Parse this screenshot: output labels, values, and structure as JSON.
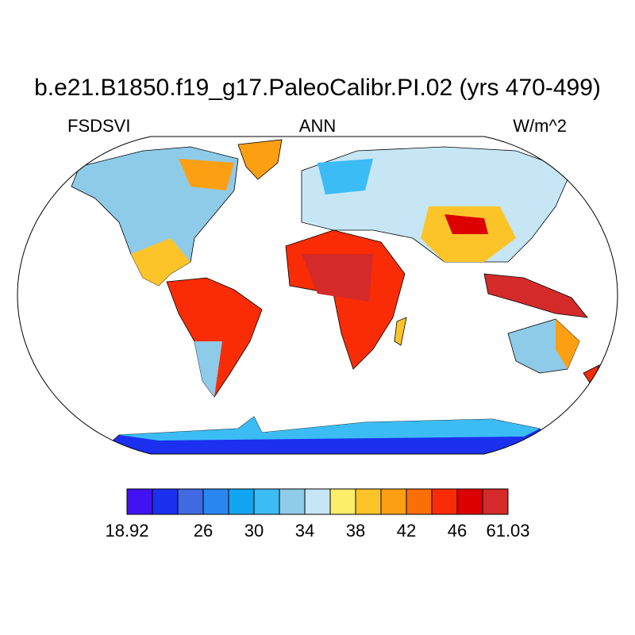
{
  "title": "b.e21.B1850.f19_g17.PaleoCalibr.PI.02 (yrs 470-499)",
  "variable": "FSDSVI",
  "season": "ANN",
  "units": "W/m^2",
  "colorbar": {
    "colors": [
      "#4312f2",
      "#1c30f0",
      "#4169e1",
      "#2a86f0",
      "#12a6f2",
      "#3cbcf5",
      "#8ecbe8",
      "#c6e6f5",
      "#fdee6a",
      "#fdc42a",
      "#fd9f13",
      "#fc6e06",
      "#fa2c06",
      "#dc0000",
      "#d42a2a"
    ],
    "levels": [
      18.92,
      null,
      null,
      26,
      null,
      30,
      null,
      34,
      null,
      38,
      null,
      42,
      null,
      46,
      null,
      61.03
    ]
  }
}
